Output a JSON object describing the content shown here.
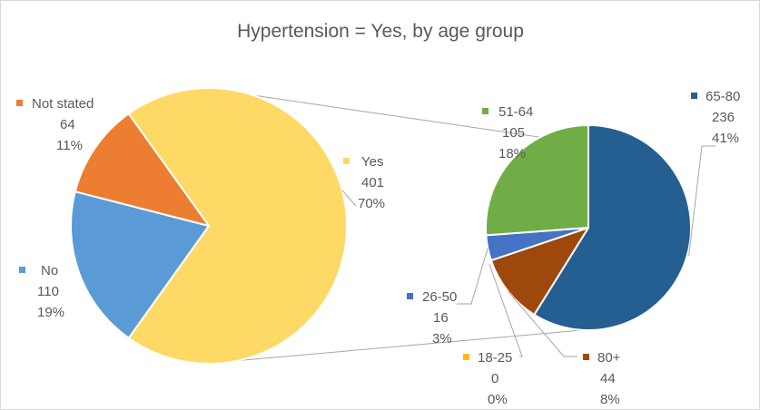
{
  "chart_data": {
    "type": "pie",
    "title": "Hypertension = Yes, by age group",
    "main_pie": {
      "slices": [
        {
          "label": "Yes",
          "value": 401,
          "percent": "70%",
          "color": "#FFD966"
        },
        {
          "label": "No",
          "value": 110,
          "percent": "19%",
          "color": "#5B9BD5"
        },
        {
          "label": "Not stated",
          "value": 64,
          "percent": "11%",
          "color": "#ED7D31"
        }
      ]
    },
    "sub_pie": {
      "slices": [
        {
          "label": "65-80",
          "value": 236,
          "percent": "41%",
          "color": "#255E91"
        },
        {
          "label": "80+",
          "value": 44,
          "percent": "8%",
          "color": "#9E480E"
        },
        {
          "label": "18-25",
          "value": 0,
          "percent": "0%",
          "color": "#FFC000"
        },
        {
          "label": "26-50",
          "value": 16,
          "percent": "3%",
          "color": "#4472C4"
        },
        {
          "label": "51-64",
          "value": 105,
          "percent": "18%",
          "color": "#70AD47"
        }
      ]
    }
  },
  "styles": {
    "text_color": "#595959",
    "leader_color": "#a6a6a6",
    "border_color": "#d9d9d9"
  }
}
